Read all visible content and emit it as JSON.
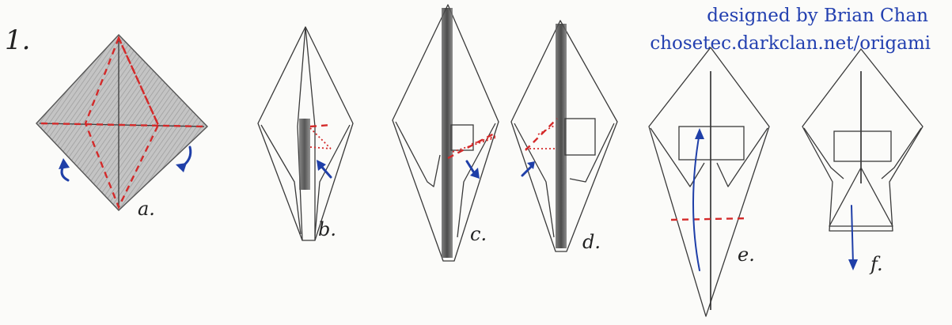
{
  "step_number": "1.",
  "credit": {
    "designer": "designed by Brian Chan",
    "url": "chosetec.darkclan.net/origami"
  },
  "substeps": [
    {
      "id": "a",
      "label": "a."
    },
    {
      "id": "b",
      "label": "b."
    },
    {
      "id": "c",
      "label": "c."
    },
    {
      "id": "d",
      "label": "d."
    },
    {
      "id": "e",
      "label": "e."
    },
    {
      "id": "f",
      "label": "f."
    }
  ],
  "colors": {
    "paper_shade": "#bdbdbd",
    "pencil": "#3a3a3a",
    "valley_fold": "#d42a2a",
    "arrow": "#1f3fa8",
    "credit_text": "#2340b0"
  },
  "icons": [
    "valley-fold-line",
    "mountain-fold-line",
    "flip-arrow",
    "sink-arrow",
    "pull-arrow"
  ]
}
